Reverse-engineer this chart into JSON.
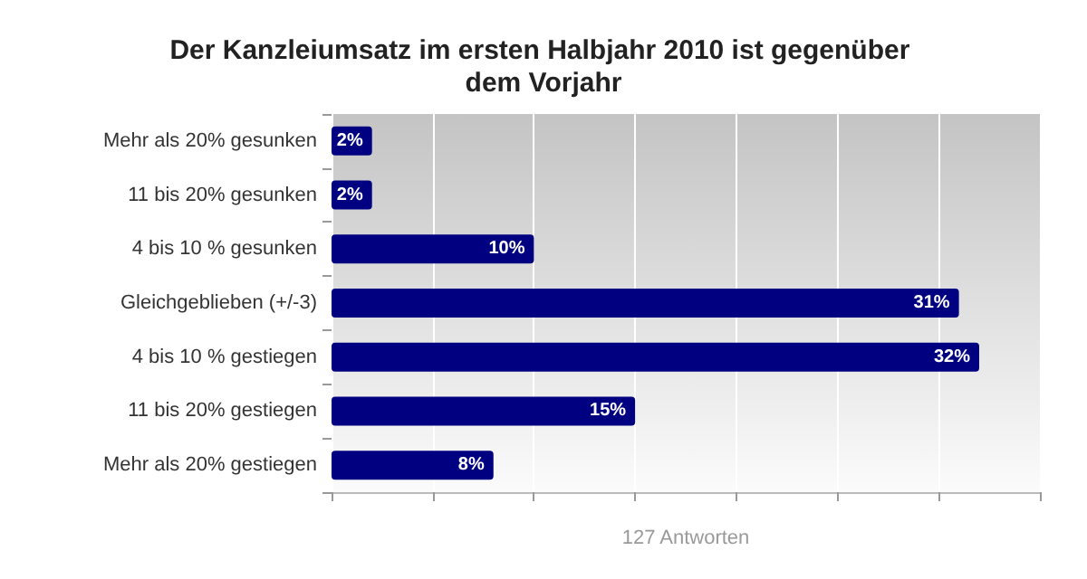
{
  "chart_data": {
    "type": "bar",
    "orientation": "horizontal",
    "title": "Der Kanzleiumsatz im ersten Halbjahr 2010 ist gegenüber dem Vorjahr",
    "xlabel": "127 Antworten",
    "categories": [
      "Mehr als 20% gesunken",
      "11 bis 20% gesunken",
      "4 bis 10 % gesunken",
      "Gleichgeblieben (+/-3)",
      "4 bis 10 % gestiegen",
      "11 bis 20% gestiegen",
      "Mehr als 20% gestiegen"
    ],
    "values": [
      2,
      2,
      10,
      31,
      32,
      15,
      8
    ],
    "value_labels": [
      "2%",
      "2%",
      "10%",
      "31%",
      "32%",
      "15%",
      "8%"
    ],
    "color": "#000080",
    "xlim": [
      0,
      35
    ],
    "xticks": [
      {
        "value": 0,
        "label": null
      },
      {
        "value": 5,
        "label": null
      },
      {
        "value": 10,
        "label": null
      },
      {
        "value": 15,
        "label": null
      },
      {
        "value": 20,
        "label": null
      },
      {
        "value": 25,
        "label": null
      },
      {
        "value": 30,
        "label": null
      },
      {
        "value": 35,
        "label": null
      }
    ],
    "tick_labels": "y",
    "grid": "x"
  }
}
